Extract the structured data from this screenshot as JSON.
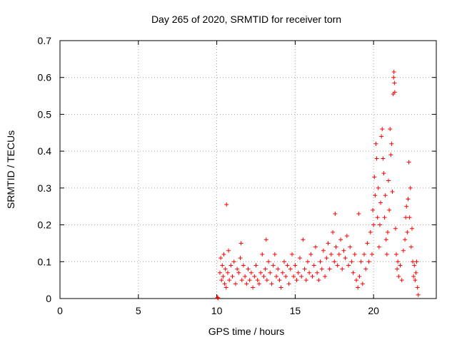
{
  "chart_data": {
    "type": "scatter",
    "title": "Day 265 of 2020, SRMTID for receiver torn",
    "xlabel": "GPS time / hours",
    "ylabel": "SRMTID / TECUs",
    "xlim": [
      0,
      24
    ],
    "ylim": [
      0,
      0.7
    ],
    "xticks": [
      "0",
      "5",
      "10",
      "15",
      "20"
    ],
    "yticks": [
      "0",
      "0.1",
      "0.2",
      "0.3",
      "0.4",
      "0.5",
      "0.6",
      "0.7"
    ],
    "grid": true,
    "marker": "+",
    "color": "#ff0000",
    "series": [
      {
        "name": "SRMTID",
        "points": [
          [
            10.05,
            0.003
          ],
          [
            10.08,
            0.001
          ],
          [
            10.2,
            0.07
          ],
          [
            10.25,
            0.11
          ],
          [
            10.3,
            0.05
          ],
          [
            10.35,
            0.09
          ],
          [
            10.4,
            0.06
          ],
          [
            10.45,
            0.12
          ],
          [
            10.5,
            0.04
          ],
          [
            10.55,
            0.08
          ],
          [
            10.6,
            0.03
          ],
          [
            10.62,
            0.255
          ],
          [
            10.7,
            0.07
          ],
          [
            10.75,
            0.13
          ],
          [
            10.8,
            0.05
          ],
          [
            10.9,
            0.09
          ],
          [
            11.0,
            0.06
          ],
          [
            11.1,
            0.1
          ],
          [
            11.2,
            0.04
          ],
          [
            11.3,
            0.08
          ],
          [
            11.4,
            0.07
          ],
          [
            11.5,
            0.11
          ],
          [
            11.55,
            0.15
          ],
          [
            11.6,
            0.05
          ],
          [
            11.7,
            0.09
          ],
          [
            11.8,
            0.06
          ],
          [
            11.9,
            0.04
          ],
          [
            12.0,
            0.08
          ],
          [
            12.1,
            0.05
          ],
          [
            12.2,
            0.07
          ],
          [
            12.3,
            0.03
          ],
          [
            12.4,
            0.06
          ],
          [
            12.5,
            0.09
          ],
          [
            12.6,
            0.05
          ],
          [
            12.7,
            0.04
          ],
          [
            12.8,
            0.07
          ],
          [
            12.9,
            0.12
          ],
          [
            13.0,
            0.06
          ],
          [
            13.1,
            0.08
          ],
          [
            13.15,
            0.16
          ],
          [
            13.2,
            0.05
          ],
          [
            13.3,
            0.1
          ],
          [
            13.4,
            0.07
          ],
          [
            13.5,
            0.04
          ],
          [
            13.6,
            0.09
          ],
          [
            13.7,
            0.12
          ],
          [
            13.8,
            0.06
          ],
          [
            13.9,
            0.08
          ],
          [
            14.0,
            0.05
          ],
          [
            14.1,
            0.03
          ],
          [
            14.2,
            0.07
          ],
          [
            14.3,
            0.1
          ],
          [
            14.4,
            0.06
          ],
          [
            14.5,
            0.09
          ],
          [
            14.6,
            0.04
          ],
          [
            14.7,
            0.08
          ],
          [
            14.8,
            0.12
          ],
          [
            14.9,
            0.06
          ],
          [
            15.0,
            0.09
          ],
          [
            15.1,
            0.05
          ],
          [
            15.2,
            0.07
          ],
          [
            15.3,
            0.11
          ],
          [
            15.4,
            0.06
          ],
          [
            15.5,
            0.16
          ],
          [
            15.6,
            0.08
          ],
          [
            15.7,
            0.05
          ],
          [
            15.8,
            0.1
          ],
          [
            15.9,
            0.07
          ],
          [
            16.0,
            0.12
          ],
          [
            16.1,
            0.06
          ],
          [
            16.2,
            0.09
          ],
          [
            16.3,
            0.14
          ],
          [
            16.4,
            0.07
          ],
          [
            16.5,
            0.05
          ],
          [
            16.6,
            0.1
          ],
          [
            16.7,
            0.08
          ],
          [
            16.8,
            0.13
          ],
          [
            16.9,
            0.06
          ],
          [
            17.0,
            0.11
          ],
          [
            17.1,
            0.15
          ],
          [
            17.2,
            0.08
          ],
          [
            17.3,
            0.12
          ],
          [
            17.4,
            0.18
          ],
          [
            17.5,
            0.1
          ],
          [
            17.55,
            0.23
          ],
          [
            17.6,
            0.14
          ],
          [
            17.7,
            0.09
          ],
          [
            17.8,
            0.12
          ],
          [
            17.9,
            0.16
          ],
          [
            18.0,
            0.08
          ],
          [
            18.1,
            0.13
          ],
          [
            18.2,
            0.11
          ],
          [
            18.3,
            0.17
          ],
          [
            18.4,
            0.09
          ],
          [
            18.5,
            0.14
          ],
          [
            18.6,
            0.1
          ],
          [
            18.7,
            0.07
          ],
          [
            18.8,
            0.12
          ],
          [
            18.9,
            0.05
          ],
          [
            19.0,
            0.03
          ],
          [
            19.05,
            0.23
          ],
          [
            19.1,
            0.06
          ],
          [
            19.2,
            0.1
          ],
          [
            19.3,
            0.04
          ],
          [
            19.4,
            0.12
          ],
          [
            19.5,
            0.08
          ],
          [
            19.6,
            0.15
          ],
          [
            19.7,
            0.1
          ],
          [
            19.8,
            0.18
          ],
          [
            19.9,
            0.12
          ],
          [
            19.95,
            0.24
          ],
          [
            20.0,
            0.2
          ],
          [
            20.05,
            0.33
          ],
          [
            20.1,
            0.28
          ],
          [
            20.15,
            0.42
          ],
          [
            20.2,
            0.38
          ],
          [
            20.25,
            0.22
          ],
          [
            20.3,
            0.3
          ],
          [
            20.35,
            0.14
          ],
          [
            20.4,
            0.2
          ],
          [
            20.45,
            0.26
          ],
          [
            20.5,
            0.44
          ],
          [
            20.55,
            0.46
          ],
          [
            20.6,
            0.38
          ],
          [
            20.65,
            0.34
          ],
          [
            20.7,
            0.22
          ],
          [
            20.75,
            0.28
          ],
          [
            20.8,
            0.16
          ],
          [
            20.85,
            0.12
          ],
          [
            20.9,
            0.18
          ],
          [
            20.95,
            0.32
          ],
          [
            21.0,
            0.24
          ],
          [
            21.05,
            0.46
          ],
          [
            21.1,
            0.39
          ],
          [
            21.15,
            0.42
          ],
          [
            21.2,
            0.29
          ],
          [
            21.25,
            0.555
          ],
          [
            21.28,
            0.6
          ],
          [
            21.3,
            0.615
          ],
          [
            21.33,
            0.585
          ],
          [
            21.35,
            0.56
          ],
          [
            21.4,
            0.19
          ],
          [
            21.45,
            0.12
          ],
          [
            21.5,
            0.08
          ],
          [
            21.55,
            0.1
          ],
          [
            21.6,
            0.06
          ],
          [
            21.7,
            0.09
          ],
          [
            21.8,
            0.05
          ],
          [
            21.9,
            0.13
          ],
          [
            22.0,
            0.16
          ],
          [
            22.05,
            0.22
          ],
          [
            22.1,
            0.25
          ],
          [
            22.15,
            0.18
          ],
          [
            22.2,
            0.27
          ],
          [
            22.25,
            0.37
          ],
          [
            22.3,
            0.22
          ],
          [
            22.35,
            0.3
          ],
          [
            22.4,
            0.14
          ],
          [
            22.45,
            0.19
          ],
          [
            22.5,
            0.1
          ],
          [
            22.55,
            0.06
          ],
          [
            22.6,
            0.09
          ],
          [
            22.65,
            0.05
          ],
          [
            22.7,
            0.07
          ],
          [
            22.75,
            0.1
          ],
          [
            22.8,
            0.03
          ],
          [
            22.85,
            0.01
          ]
        ]
      }
    ]
  }
}
